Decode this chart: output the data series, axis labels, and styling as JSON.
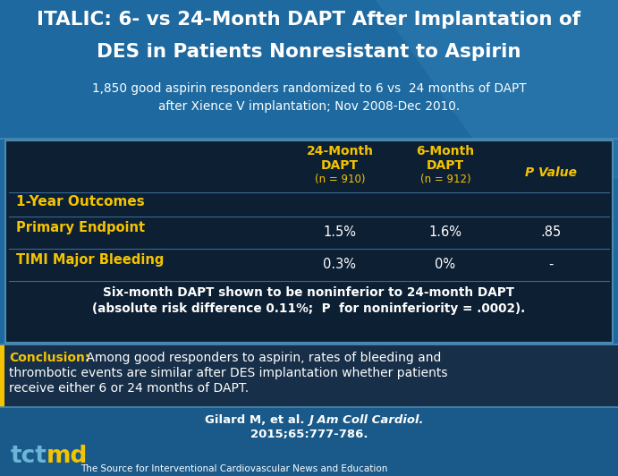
{
  "title_line1": "ITALIC: 6- vs 24-Month DAPT After Implantation of",
  "title_line2": "DES in Patients Nonresistant to Aspirin",
  "sub1": "1,850 good aspirin responders randomized to 6 vs  24 months of DAPT",
  "sub2": "after Xience V implantation; Nov 2008-Dec 2010.",
  "col1_h1": "24-Month",
  "col1_h2": "DAPT",
  "col1_h3": "(n = 910)",
  "col2_h1": "6-Month",
  "col2_h2": "DAPT",
  "col2_h3": "(n = 912)",
  "col3_h": "P Value",
  "row0_label": "1-Year Outcomes",
  "row1_label": "Primary Endpoint",
  "row1_v1": "1.5%",
  "row1_v2": "1.6%",
  "row1_v3": ".85",
  "row2_label": "TIMI Major Bleeding",
  "row2_v1": "0.3%",
  "row2_v2": "0%",
  "row2_v3": "-",
  "note1": "Six-month DAPT shown to be noninferior to 24-month DAPT",
  "note2a": "(absolute risk difference 0.11%; ",
  "note2b": "P",
  "note2c": " for noninferiority = .0002).",
  "conc_label": "Conclusion:",
  "conc_text1": " Among good responders to aspirin, rates of bleeding and",
  "conc_text2": "thrombotic events are similar after DES implantation whether patients",
  "conc_text3": "receive either 6 or 24 months of DAPT.",
  "cit1a": "Gilard M, et al. ",
  "cit1b": "J Am Coll Cardiol.",
  "cit2": "2015;65:777-786.",
  "footer": "The Source for Interventional Cardiovascular News and Education",
  "bg_main": "#1e6aa0",
  "bg_dark": "#122840",
  "bg_table": "#0d1f33",
  "bg_conc": "#1a3d5c",
  "bg_footer": "#1a5a8a",
  "yellow": "#f5c400",
  "white": "#ffffff",
  "tct_blue": "#6bb5d8",
  "border_blue": "#4a8ab0",
  "divider": "#3a6a90"
}
